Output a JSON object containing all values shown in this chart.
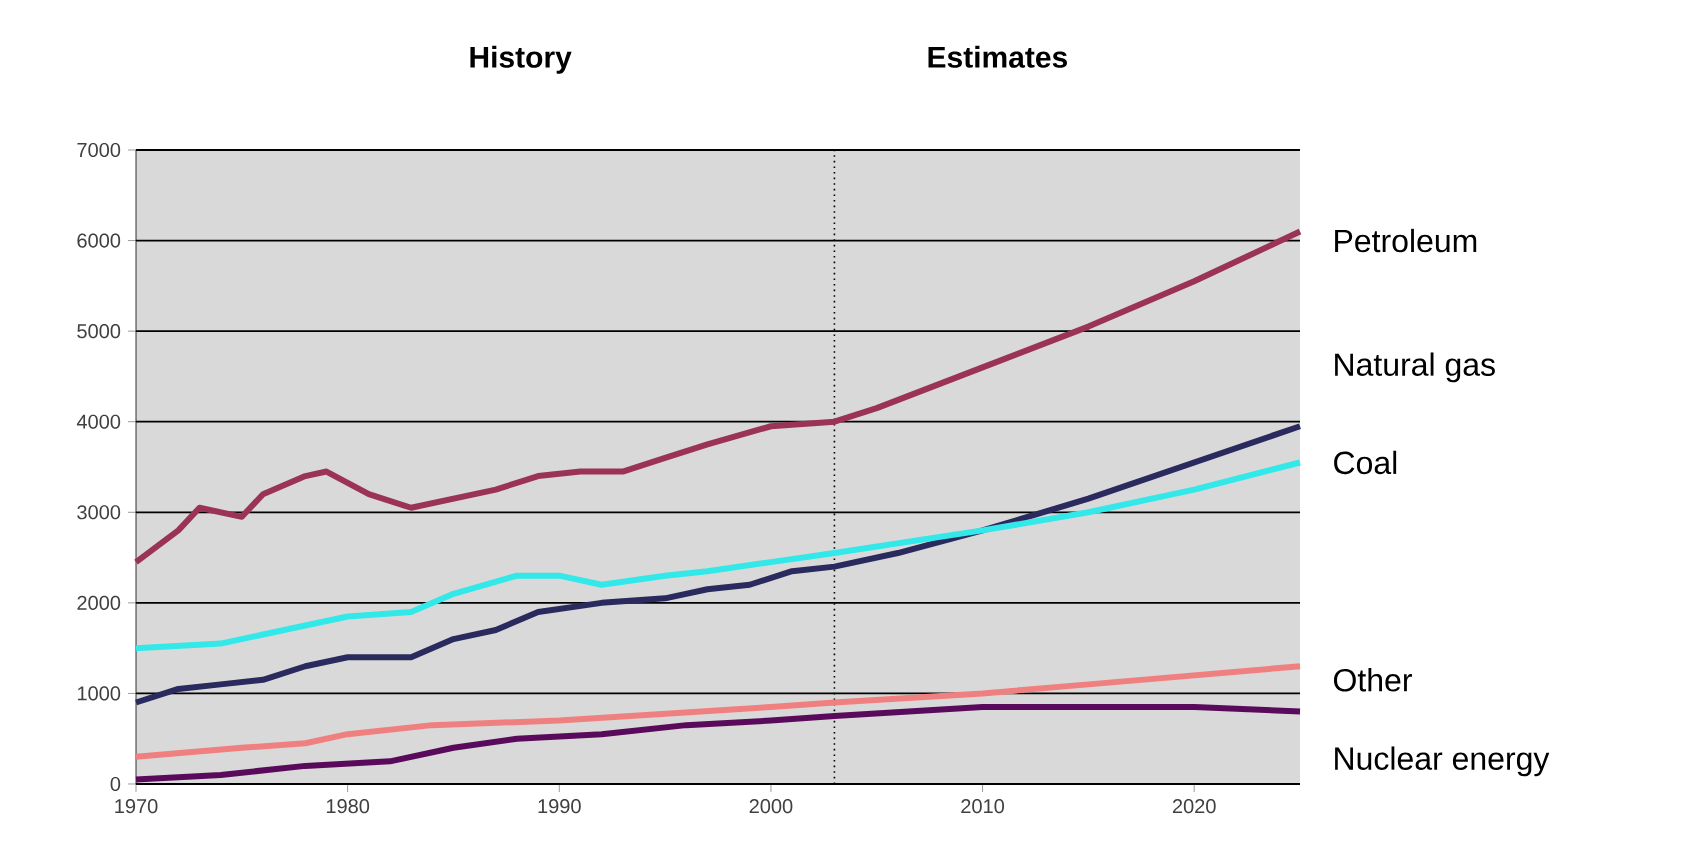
{
  "chart_data": {
    "type": "line",
    "legend": false,
    "grid": "y",
    "marker": "none",
    "line_style": "solid",
    "xlim": [
      1970,
      2025
    ],
    "ylim": [
      0,
      7000
    ],
    "xticks": [
      1970,
      1980,
      1990,
      2000,
      2010,
      2020
    ],
    "yticks": [
      0,
      1000,
      2000,
      3000,
      4000,
      5000,
      6000,
      7000
    ],
    "ref_lines": [
      {
        "axis": "x",
        "value": 2003,
        "line_style": "dotted",
        "color": "#000000"
      }
    ],
    "annotations": [
      "History",
      "Estimates"
    ],
    "series": [
      {
        "name": "Petroleum",
        "color": "#9b3355",
        "x": [
          1970,
          1972,
          1973,
          1975,
          1976,
          1978,
          1979,
          1981,
          1983,
          1985,
          1987,
          1989,
          1991,
          1993,
          1995,
          1997,
          2000,
          2003,
          2005,
          2010,
          2015,
          2020,
          2025
        ],
        "values": [
          2450,
          2800,
          3050,
          2950,
          3200,
          3400,
          3450,
          3200,
          3050,
          3150,
          3250,
          3400,
          3450,
          3450,
          3600,
          3750,
          3950,
          4000,
          4150,
          4600,
          5050,
          5550,
          6100
        ]
      },
      {
        "name": "Natural gas",
        "color": "#2a2a5e",
        "x": [
          1970,
          1972,
          1974,
          1976,
          1978,
          1980,
          1983,
          1985,
          1987,
          1989,
          1992,
          1995,
          1997,
          1999,
          2001,
          2003,
          2006,
          2010,
          2015,
          2020,
          2025
        ],
        "values": [
          900,
          1050,
          1100,
          1150,
          1300,
          1400,
          1400,
          1600,
          1700,
          1900,
          2000,
          2050,
          2150,
          2200,
          2350,
          2400,
          2550,
          2800,
          3150,
          3550,
          3950
        ]
      },
      {
        "name": "Coal",
        "color": "#33e8e8",
        "x": [
          1970,
          1974,
          1976,
          1978,
          1980,
          1983,
          1985,
          1988,
          1990,
          1992,
          1995,
          1997,
          2000,
          2003,
          2010,
          2015,
          2020,
          2025
        ],
        "values": [
          1500,
          1550,
          1650,
          1750,
          1850,
          1900,
          2100,
          2300,
          2300,
          2200,
          2300,
          2350,
          2450,
          2550,
          2800,
          3000,
          3250,
          3550
        ]
      },
      {
        "name": "Other",
        "color": "#f08080",
        "x": [
          1970,
          1975,
          1978,
          1980,
          1984,
          1990,
          2000,
          2003,
          2010,
          2015,
          2020,
          2025
        ],
        "values": [
          300,
          400,
          450,
          550,
          650,
          700,
          850,
          900,
          1000,
          1100,
          1200,
          1300
        ]
      },
      {
        "name": "Nuclear energy",
        "color": "#5a0a5a",
        "x": [
          1970,
          1974,
          1978,
          1982,
          1985,
          1988,
          1992,
          1996,
          2000,
          2003,
          2010,
          2015,
          2020,
          2025
        ],
        "values": [
          50,
          100,
          200,
          250,
          400,
          500,
          550,
          650,
          700,
          750,
          850,
          850,
          850,
          800
        ]
      }
    ]
  }
}
